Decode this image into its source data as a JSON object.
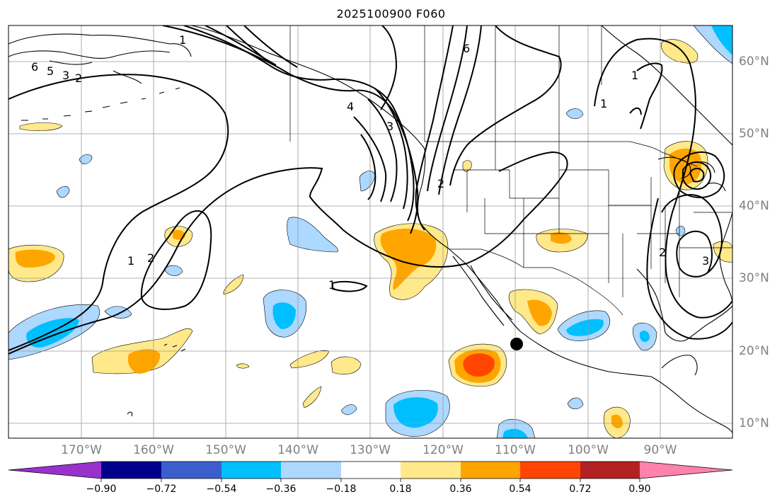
{
  "title": "2025100900 F060",
  "map": {
    "region": "Eastern Pacific / North America",
    "longitude_labels": [
      "170°W",
      "160°W",
      "150°W",
      "140°W",
      "130°W",
      "120°W",
      "110°W",
      "100°W",
      "90°W"
    ],
    "latitude_labels": [
      "60°N",
      "50°N",
      "40°N",
      "30°N",
      "20°N",
      "10°N"
    ],
    "gridlines": true,
    "marker": {
      "type": "black dot",
      "lon": -109.8,
      "lat": 20.9
    },
    "contour_color": "#000000",
    "contour_labels": [
      "6",
      "5",
      "3",
      "2",
      "1",
      "6",
      "4",
      "3",
      "2",
      "1",
      "1",
      "1",
      "2",
      "2",
      "3",
      "1"
    ]
  },
  "colorbar": {
    "tick_labels": [
      "−0.90",
      "−0.72",
      "−0.54",
      "−0.36",
      "−0.18",
      "0.18",
      "0.36",
      "0.54",
      "0.72",
      "0.90"
    ],
    "colors": [
      "#9932cc",
      "#00008b",
      "#3a5fcd",
      "#00bfff",
      "#add8ff",
      "#ffffff",
      "#ffe98a",
      "#ffa500",
      "#ff4500",
      "#b22222",
      "#ff82ab"
    ],
    "extend": "both"
  }
}
